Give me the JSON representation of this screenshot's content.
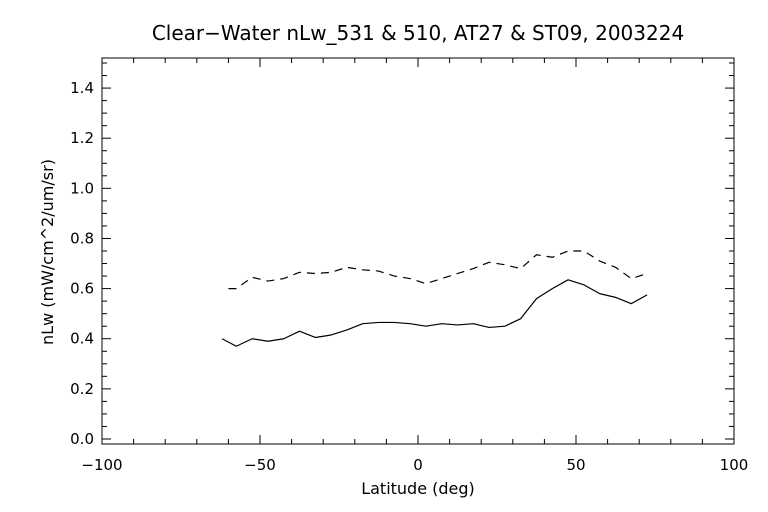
{
  "chart_data": {
    "type": "line",
    "title": "Clear−Water nLw_531 & 510, AT27 & ST09, 2003224",
    "xlabel": "Latitude (deg)",
    "ylabel": "nLw (mW/cm^2/um/sr)",
    "xlim": [
      -100,
      100
    ],
    "ylim": [
      -0.02,
      1.52
    ],
    "grid": false,
    "x_ticks": [
      -100,
      -50,
      0,
      50,
      100
    ],
    "x_tick_labels": [
      "−100",
      "−50",
      "0",
      "50",
      "100"
    ],
    "y_ticks": [
      0.0,
      0.2,
      0.4,
      0.6,
      0.8,
      1.0,
      1.2,
      1.4
    ],
    "y_tick_labels": [
      "0.0",
      "0.2",
      "0.4",
      "0.6",
      "0.8",
      "1.0",
      "1.2",
      "1.4"
    ],
    "series": [
      {
        "style": "solid",
        "color": "#000000",
        "points": [
          [
            -62,
            0.4
          ],
          [
            -57.5,
            0.37
          ],
          [
            -52.5,
            0.4
          ],
          [
            -47.5,
            0.39
          ],
          [
            -42.5,
            0.4
          ],
          [
            -37.5,
            0.43
          ],
          [
            -32.5,
            0.405
          ],
          [
            -27.5,
            0.415
          ],
          [
            -22.5,
            0.435
          ],
          [
            -17.5,
            0.46
          ],
          [
            -12.5,
            0.465
          ],
          [
            -7.5,
            0.465
          ],
          [
            -2.5,
            0.46
          ],
          [
            2.5,
            0.45
          ],
          [
            7.5,
            0.46
          ],
          [
            12.5,
            0.455
          ],
          [
            17.5,
            0.46
          ],
          [
            22.5,
            0.445
          ],
          [
            27.5,
            0.45
          ],
          [
            32.5,
            0.48
          ],
          [
            37.5,
            0.56
          ],
          [
            42.5,
            0.6
          ],
          [
            47.5,
            0.635
          ],
          [
            52.5,
            0.615
          ],
          [
            57.5,
            0.58
          ],
          [
            62.5,
            0.565
          ],
          [
            67.5,
            0.54
          ],
          [
            72.5,
            0.575
          ]
        ]
      },
      {
        "style": "dashed",
        "color": "#000000",
        "points": [
          [
            -60,
            0.6
          ],
          [
            -57.5,
            0.6
          ],
          [
            -52.5,
            0.645
          ],
          [
            -47.5,
            0.63
          ],
          [
            -42.5,
            0.64
          ],
          [
            -37.5,
            0.665
          ],
          [
            -32.5,
            0.66
          ],
          [
            -27.5,
            0.665
          ],
          [
            -22.5,
            0.685
          ],
          [
            -17.5,
            0.675
          ],
          [
            -12.5,
            0.67
          ],
          [
            -7.5,
            0.65
          ],
          [
            -2.5,
            0.64
          ],
          [
            2.5,
            0.62
          ],
          [
            7.5,
            0.64
          ],
          [
            12.5,
            0.66
          ],
          [
            17.5,
            0.68
          ],
          [
            22.5,
            0.705
          ],
          [
            27.5,
            0.695
          ],
          [
            32.5,
            0.68
          ],
          [
            37.5,
            0.735
          ],
          [
            42.5,
            0.725
          ],
          [
            47.5,
            0.75
          ],
          [
            52.5,
            0.75
          ],
          [
            57.5,
            0.71
          ],
          [
            62.5,
            0.685
          ],
          [
            67.5,
            0.64
          ],
          [
            72.5,
            0.66
          ]
        ]
      }
    ]
  }
}
